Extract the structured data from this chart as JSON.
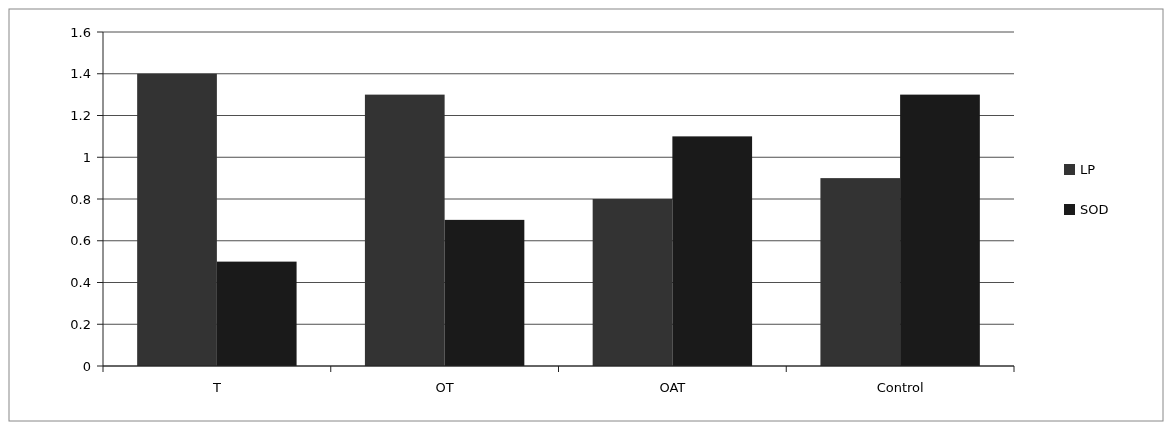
{
  "chart_data": {
    "type": "bar",
    "categories": [
      "T",
      "OT",
      "OAT",
      "Control"
    ],
    "series": [
      {
        "name": "LP",
        "color": "#333333",
        "values": [
          1.4,
          1.3,
          0.8,
          0.9
        ]
      },
      {
        "name": "SOD",
        "color": "#1a1a1a",
        "values": [
          0.5,
          0.7,
          1.1,
          1.3
        ]
      }
    ],
    "ylim": [
      0,
      1.6
    ],
    "yticks": [
      0,
      0.2,
      0.4,
      0.6,
      0.8,
      1,
      1.2,
      1.4,
      1.6
    ],
    "grid": "y",
    "legend": "right"
  }
}
